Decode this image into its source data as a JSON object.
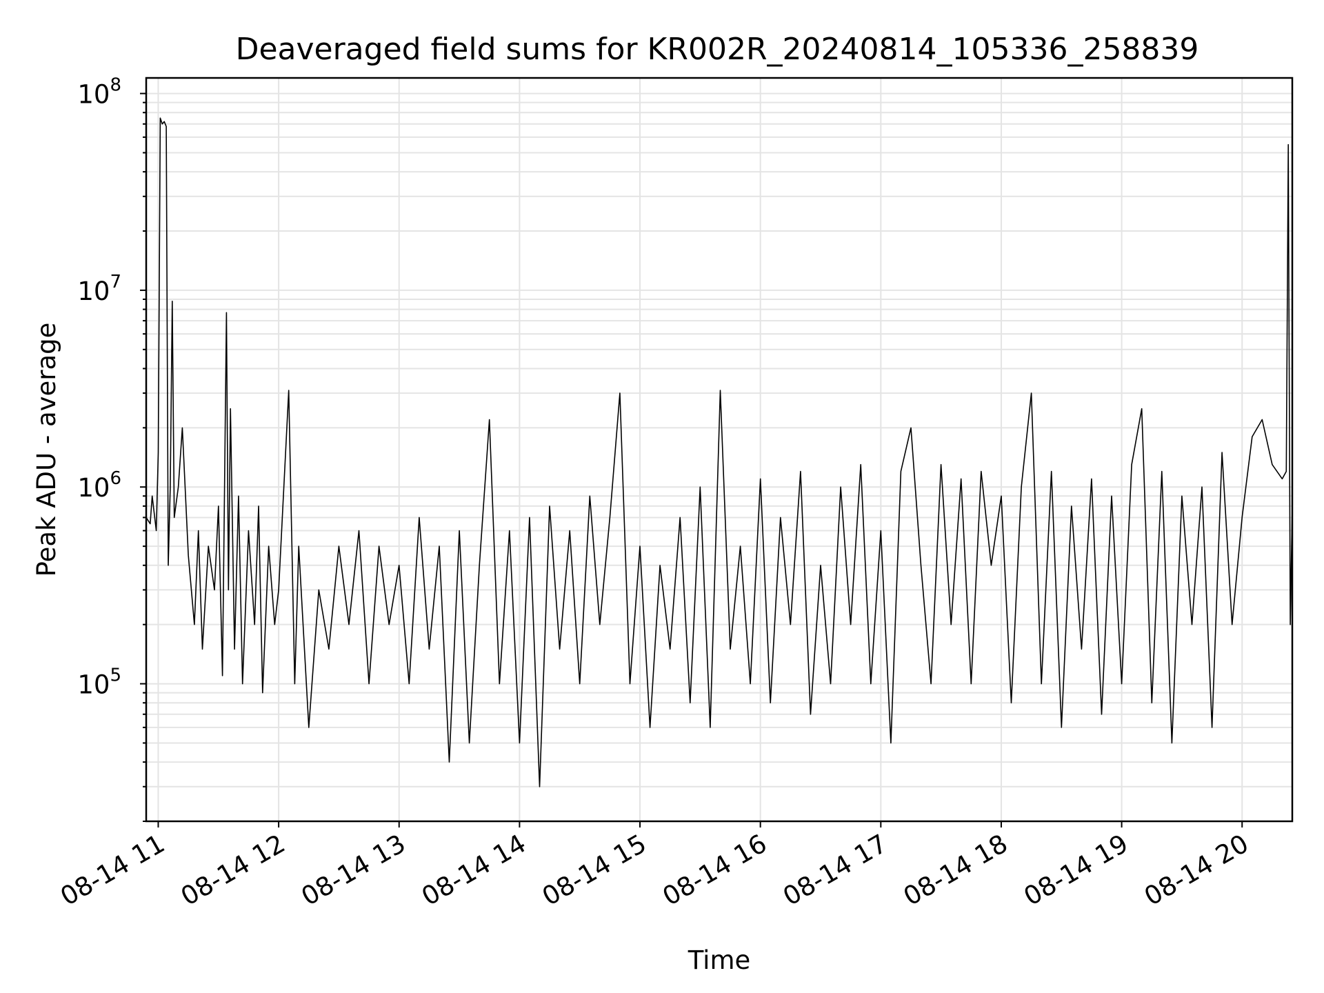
{
  "chart_data": {
    "type": "line",
    "title": "Deaveraged field sums for KR002R_20240814_105336_258839",
    "xlabel": "Time",
    "ylabel": "Peak ADU - average",
    "yscale": "log",
    "ylim": [
      20000,
      120000000
    ],
    "xlim": [
      "08-14 10:54",
      "08-14 20:25"
    ],
    "grid": true,
    "line_color": "#000000",
    "x_ticks": [
      "08-14 11",
      "08-14 12",
      "08-14 13",
      "08-14 14",
      "08-14 15",
      "08-14 16",
      "08-14 17",
      "08-14 18",
      "08-14 19",
      "08-14 20"
    ],
    "y_ticks": [
      {
        "base": "10",
        "exp": "5",
        "value": 100000
      },
      {
        "base": "10",
        "exp": "6",
        "value": 1000000
      },
      {
        "base": "10",
        "exp": "7",
        "value": 10000000
      },
      {
        "base": "10",
        "exp": "8",
        "value": 100000000
      }
    ],
    "series": [
      {
        "x": [
          "10:54",
          "10:56",
          "10:57",
          "10:59",
          "11:00",
          "11:01",
          "11:02",
          "11:03",
          "11:04",
          "11:05",
          "11:06",
          "11:07",
          "11:08",
          "11:10",
          "11:12",
          "11:15",
          "11:18",
          "11:20",
          "11:22",
          "11:25",
          "11:28",
          "11:30",
          "11:32",
          "11:34",
          "11:35",
          "11:36",
          "11:38",
          "11:40",
          "11:42",
          "11:45",
          "11:48",
          "11:50",
          "11:52",
          "11:55",
          "11:58",
          "12:00",
          "12:05",
          "12:08",
          "12:10",
          "12:15",
          "12:20",
          "12:25",
          "12:30",
          "12:35",
          "12:40",
          "12:45",
          "12:50",
          "12:55",
          "13:00",
          "13:05",
          "13:10",
          "13:15",
          "13:20",
          "13:25",
          "13:30",
          "13:35",
          "13:40",
          "13:45",
          "13:50",
          "13:55",
          "14:00",
          "14:05",
          "14:10",
          "14:15",
          "14:20",
          "14:25",
          "14:30",
          "14:35",
          "14:40",
          "14:45",
          "14:50",
          "14:55",
          "15:00",
          "15:05",
          "15:10",
          "15:15",
          "15:20",
          "15:25",
          "15:30",
          "15:35",
          "15:40",
          "15:45",
          "15:50",
          "15:55",
          "16:00",
          "16:05",
          "16:10",
          "16:15",
          "16:20",
          "16:25",
          "16:30",
          "16:35",
          "16:40",
          "16:45",
          "16:50",
          "16:55",
          "17:00",
          "17:05",
          "17:10",
          "17:15",
          "17:20",
          "17:25",
          "17:30",
          "17:35",
          "17:40",
          "17:45",
          "17:50",
          "17:55",
          "18:00",
          "18:05",
          "18:10",
          "18:15",
          "18:20",
          "18:25",
          "18:30",
          "18:35",
          "18:40",
          "18:45",
          "18:50",
          "18:55",
          "19:00",
          "19:05",
          "19:10",
          "19:15",
          "19:20",
          "19:25",
          "19:30",
          "19:35",
          "19:40",
          "19:45",
          "19:50",
          "19:55",
          "20:00",
          "20:05",
          "20:10",
          "20:15",
          "20:20",
          "20:22",
          "20:23",
          "20:24",
          "20:25"
        ],
        "y": [
          700000,
          650000,
          900000,
          600000,
          1500000,
          75000000,
          70000000,
          72000000,
          68000000,
          400000,
          1000000,
          8800000,
          700000,
          1000000,
          2000000,
          450000,
          200000,
          600000,
          150000,
          500000,
          300000,
          800000,
          110000,
          7700000,
          300000,
          2500000,
          150000,
          900000,
          100000,
          600000,
          200000,
          800000,
          90000,
          500000,
          200000,
          300000,
          3100000,
          100000,
          500000,
          60000,
          300000,
          150000,
          500000,
          200000,
          600000,
          100000,
          500000,
          200000,
          400000,
          100000,
          700000,
          150000,
          500000,
          40000,
          600000,
          50000,
          400000,
          2200000,
          100000,
          600000,
          50000,
          700000,
          30000,
          800000,
          150000,
          600000,
          100000,
          900000,
          200000,
          700000,
          3000000,
          100000,
          500000,
          60000,
          400000,
          150000,
          700000,
          80000,
          1000000,
          60000,
          3100000,
          150000,
          500000,
          100000,
          1100000,
          80000,
          700000,
          200000,
          1200000,
          70000,
          400000,
          100000,
          1000000,
          200000,
          1300000,
          100000,
          600000,
          50000,
          1200000,
          2000000,
          400000,
          100000,
          1300000,
          200000,
          1100000,
          100000,
          1200000,
          400000,
          900000,
          80000,
          1000000,
          3000000,
          100000,
          1200000,
          60000,
          800000,
          150000,
          1100000,
          70000,
          900000,
          100000,
          1300000,
          2500000,
          80000,
          1200000,
          50000,
          900000,
          200000,
          1000000,
          60000,
          1500000,
          200000,
          700000,
          1800000,
          2200000,
          1300000,
          1100000,
          1200000,
          55000000,
          200000,
          800000
        ]
      }
    ]
  }
}
